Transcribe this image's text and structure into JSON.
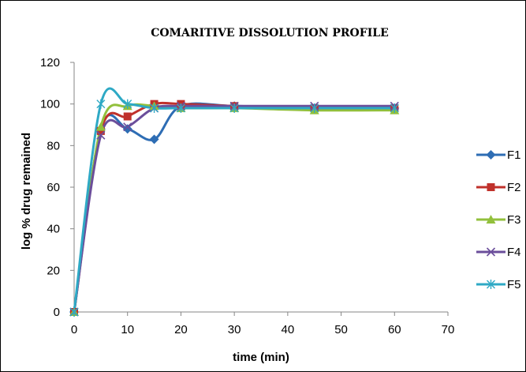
{
  "chart_data": {
    "type": "line",
    "title": "COMARITIVE DISSOLUTION PROFILE",
    "xlabel": "time (min)",
    "ylabel": "log % drug remained",
    "xlim": [
      0,
      70
    ],
    "ylim": [
      0,
      120
    ],
    "xticks": [
      0,
      10,
      20,
      30,
      40,
      50,
      60,
      70
    ],
    "yticks": [
      0,
      20,
      40,
      60,
      80,
      100,
      120
    ],
    "grid": false,
    "smooth": true,
    "legend_position": "right",
    "x": [
      0,
      5,
      10,
      15,
      20,
      30,
      45,
      60
    ],
    "series": [
      {
        "name": "F1",
        "color": "#2E6DB4",
        "marker": "diamond",
        "values": [
          0,
          88,
          88,
          83,
          99,
          99,
          98,
          98
        ]
      },
      {
        "name": "F2",
        "color": "#C0312B",
        "marker": "square",
        "values": [
          0,
          87,
          94,
          100,
          100,
          99,
          98,
          98
        ]
      },
      {
        "name": "F3",
        "color": "#92C03C",
        "marker": "triangle",
        "values": [
          0,
          89,
          99,
          99,
          98,
          98,
          97,
          97
        ]
      },
      {
        "name": "F4",
        "color": "#6B4E9B",
        "marker": "x",
        "values": [
          0,
          85,
          89,
          98,
          99,
          99,
          99,
          99
        ]
      },
      {
        "name": "F5",
        "color": "#2EA9C5",
        "marker": "star",
        "values": [
          0,
          100,
          100,
          98,
          98,
          98,
          98,
          98
        ]
      }
    ]
  }
}
